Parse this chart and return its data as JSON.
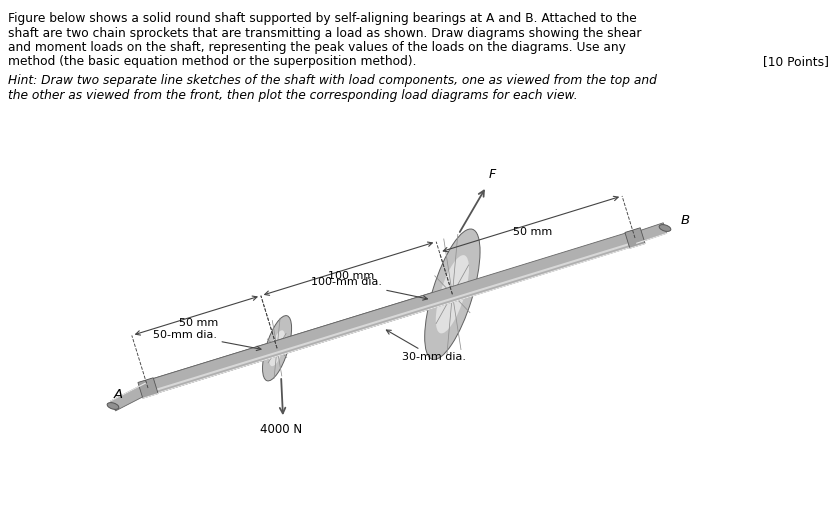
{
  "text_block1_line1": "Figure below shows a solid round shaft supported by self-aligning bearings at A and B. Attached to the",
  "text_block1_line2": "shaft are two chain sprockets that are transmitting a load as shown. Draw diagrams showing the shear",
  "text_block1_line3": "and moment loads on the shaft, representing the peak values of the loads on the diagrams. Use any",
  "text_block1_line4": "method (the basic equation method or the superposition method).",
  "text_points": "[10 Points]",
  "text_hint_line1": "Hint: Draw two separate line sketches of the shaft with load components, one as viewed from the top and",
  "text_hint_line2": "the other as viewed from the front, then plot the corresponding load diagrams for each view.",
  "label_100mm_dia": "100-mm dia.",
  "label_50mm_dia": "50-mm dia.",
  "label_30mm_dia": "30-mm dia.",
  "label_4000N": "4000 N",
  "label_100mm_dim": "100 mm",
  "label_50mm_dim_left": "50 mm",
  "label_50mm_dim_right": "50 mm",
  "label_A": "A",
  "label_B": "B",
  "label_F": "F",
  "bg_color": "#ffffff",
  "text_color": "#000000",
  "shaft_color_light": "#d0d0d0",
  "shaft_color_mid": "#b0b0b0",
  "shaft_color_dark": "#888888",
  "disk_color_light": "#e0e0e0",
  "disk_color_mid": "#c0c0c0",
  "disk_color_dark": "#909090",
  "dim_color": "#444444",
  "arrow_color": "#555555"
}
